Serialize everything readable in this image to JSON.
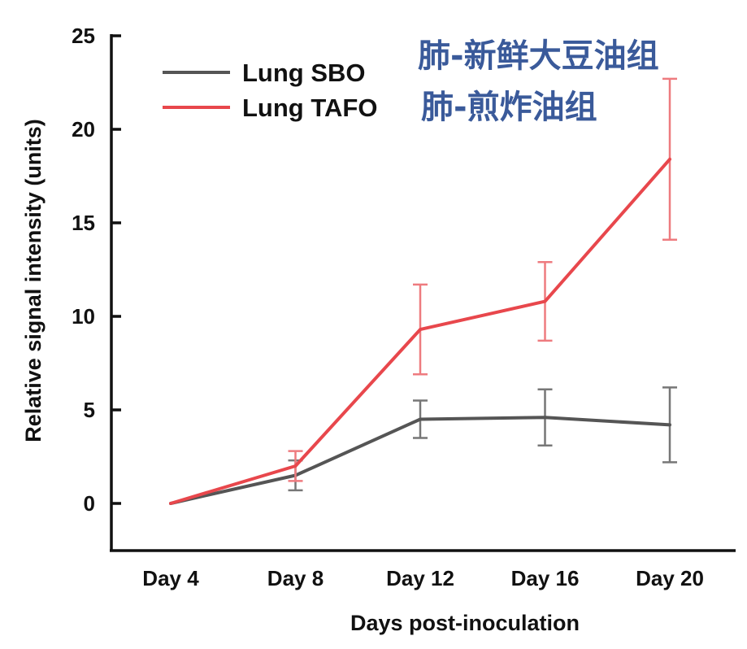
{
  "chart_data": {
    "type": "line",
    "title": "",
    "xlabel": "Days post-inoculation",
    "ylabel": "Relative signal intensity (units)",
    "categories": [
      "Day 4",
      "Day 8",
      "Day 12",
      "Day 16",
      "Day 20"
    ],
    "ylim": [
      -2.5,
      25
    ],
    "yticks": [
      0,
      5,
      10,
      15,
      20,
      25
    ],
    "ytick_labels": [
      "0",
      "5",
      "10",
      "15",
      "20",
      "25"
    ],
    "grid": false,
    "legend_position": "top-left",
    "series": [
      {
        "name": "Lung SBO",
        "color": "#555555",
        "values": [
          0,
          1.5,
          4.5,
          4.6,
          4.2
        ],
        "errors": [
          0,
          0.8,
          1.0,
          1.5,
          2.0
        ]
      },
      {
        "name": "Lung TAFO",
        "color": "#e8474c",
        "values": [
          0,
          2.0,
          9.3,
          10.8,
          18.4
        ],
        "errors": [
          0,
          0.8,
          2.4,
          2.1,
          4.3
        ]
      }
    ],
    "annotations": [
      {
        "text": "肺-新鲜大豆油组",
        "color": "#3a5a9a"
      },
      {
        "text": "肺-煎炸油组",
        "color": "#3a5a9a"
      }
    ]
  }
}
